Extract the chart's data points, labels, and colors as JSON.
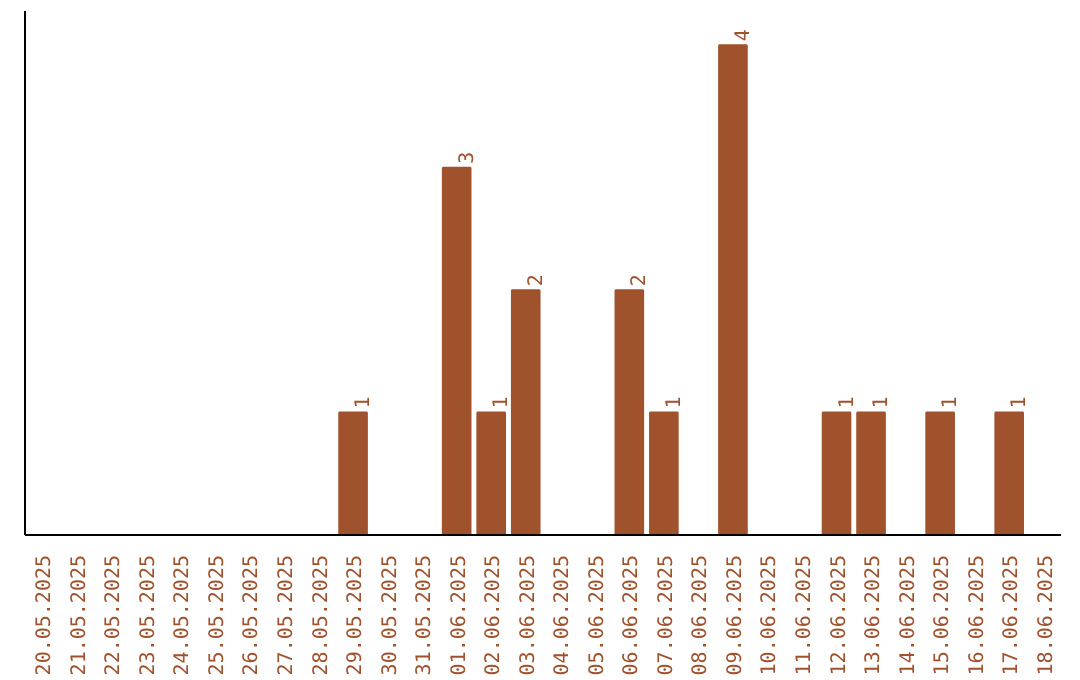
{
  "chart_data": {
    "type": "bar",
    "categories": [
      "20.05.2025",
      "21.05.2025",
      "22.05.2025",
      "23.05.2025",
      "24.05.2025",
      "25.05.2025",
      "26.05.2025",
      "27.05.2025",
      "28.05.2025",
      "29.05.2025",
      "30.05.2025",
      "31.05.2025",
      "01.06.2025",
      "02.06.2025",
      "03.06.2025",
      "04.06.2025",
      "05.06.2025",
      "06.06.2025",
      "07.06.2025",
      "08.06.2025",
      "09.06.2025",
      "10.06.2025",
      "11.06.2025",
      "12.06.2025",
      "13.06.2025",
      "14.06.2025",
      "15.06.2025",
      "16.06.2025",
      "17.06.2025",
      "18.06.2025"
    ],
    "values": [
      0,
      0,
      0,
      0,
      0,
      0,
      0,
      0,
      0,
      1,
      0,
      0,
      3,
      1,
      2,
      0,
      0,
      2,
      1,
      0,
      4,
      0,
      0,
      1,
      1,
      0,
      1,
      0,
      1,
      0
    ],
    "value_labels": [
      null,
      null,
      null,
      null,
      null,
      null,
      null,
      null,
      null,
      "1",
      null,
      null,
      "3",
      "1",
      "2",
      null,
      null,
      "2",
      "1",
      null,
      "4",
      null,
      null,
      "1",
      "1",
      null,
      "1",
      null,
      "1",
      null
    ],
    "color": "#a0522d",
    "grid": false,
    "tick_labels": "x"
  }
}
